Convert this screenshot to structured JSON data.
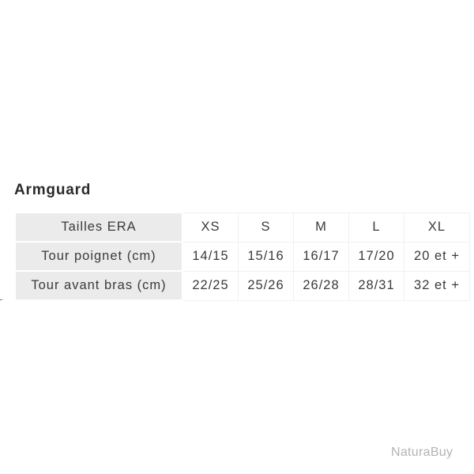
{
  "title": "Armguard",
  "table": {
    "rows": [
      {
        "label": "Tailles ERA",
        "cells": [
          "XS",
          "S",
          "M",
          "L",
          "XL"
        ]
      },
      {
        "label": "Tour poignet (cm)",
        "cells": [
          "14/15",
          "15/16",
          "16/17",
          "17/20",
          "20 et +"
        ]
      },
      {
        "label": "Tour avant bras (cm)",
        "cells": [
          "22/25",
          "25/26",
          "26/28",
          "28/31",
          "32 et +"
        ]
      }
    ]
  },
  "watermark": "NaturaBuy"
}
